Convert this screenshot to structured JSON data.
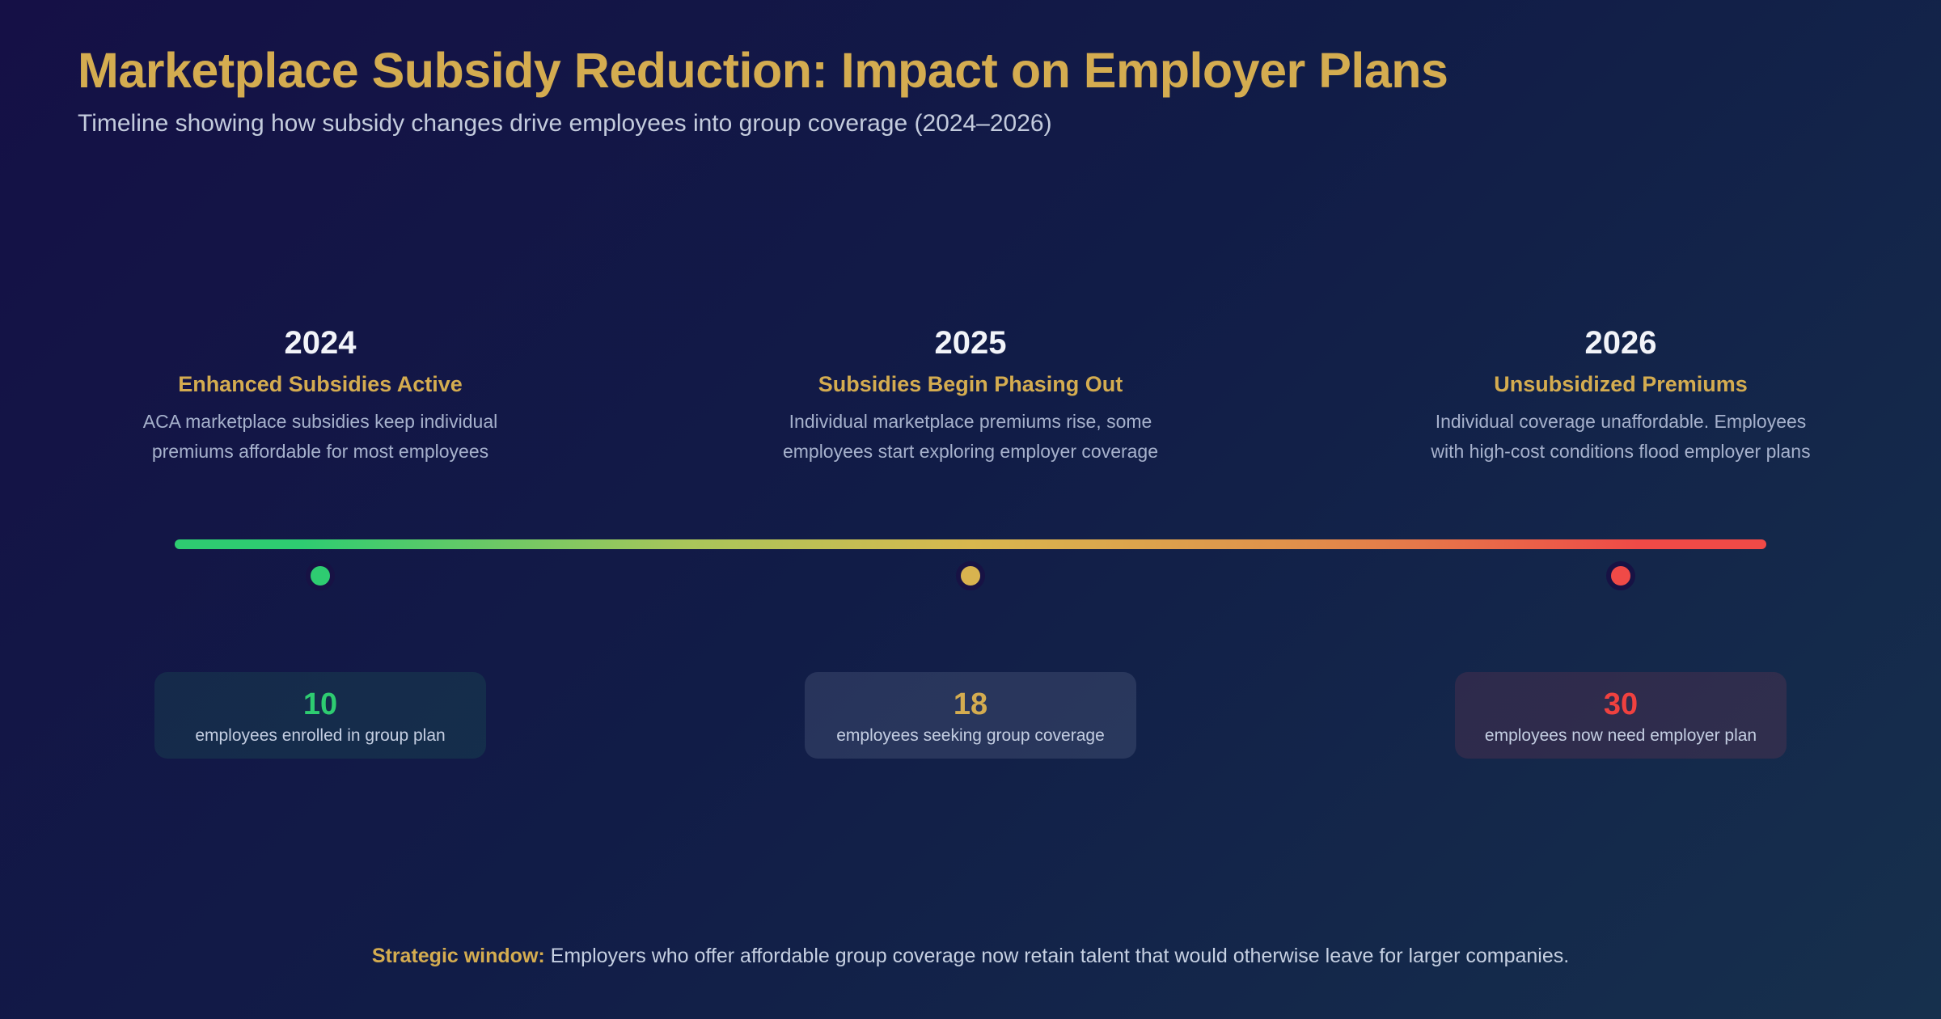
{
  "header": {
    "title": "Marketplace Subsidy Reduction: Impact on Employer Plans",
    "subtitle": "Timeline showing how subsidy changes drive employees into group coverage (2024–2026)"
  },
  "timeline": {
    "milestones": [
      {
        "year": "2024",
        "heading": "Enhanced Subsidies Active",
        "description": "ACA marketplace subsidies keep individual premiums affordable for most employees",
        "stat_value": "10",
        "stat_label": "employees enrolled in group plan",
        "accent_color": "#2ecc71"
      },
      {
        "year": "2025",
        "heading": "Subsidies Begin Phasing Out",
        "description": "Individual marketplace premiums rise, some employees start exploring employer coverage",
        "stat_value": "18",
        "stat_label": "employees seeking group coverage",
        "accent_color": "#d4ac50"
      },
      {
        "year": "2026",
        "heading": "Unsubsidized Premiums",
        "description": "Individual coverage unaffordable. Employees with high-cost conditions flood employer plans",
        "stat_value": "30",
        "stat_label": "employees now need employer plan",
        "accent_color": "#ef4a47"
      }
    ],
    "bar_gradient": [
      "#2ecc71",
      "#d8b84e",
      "#ef4a47"
    ]
  },
  "footnote": {
    "label": "Strategic window:",
    "text": "Employers who offer affordable group coverage now retain talent that would otherwise leave for larger companies."
  }
}
